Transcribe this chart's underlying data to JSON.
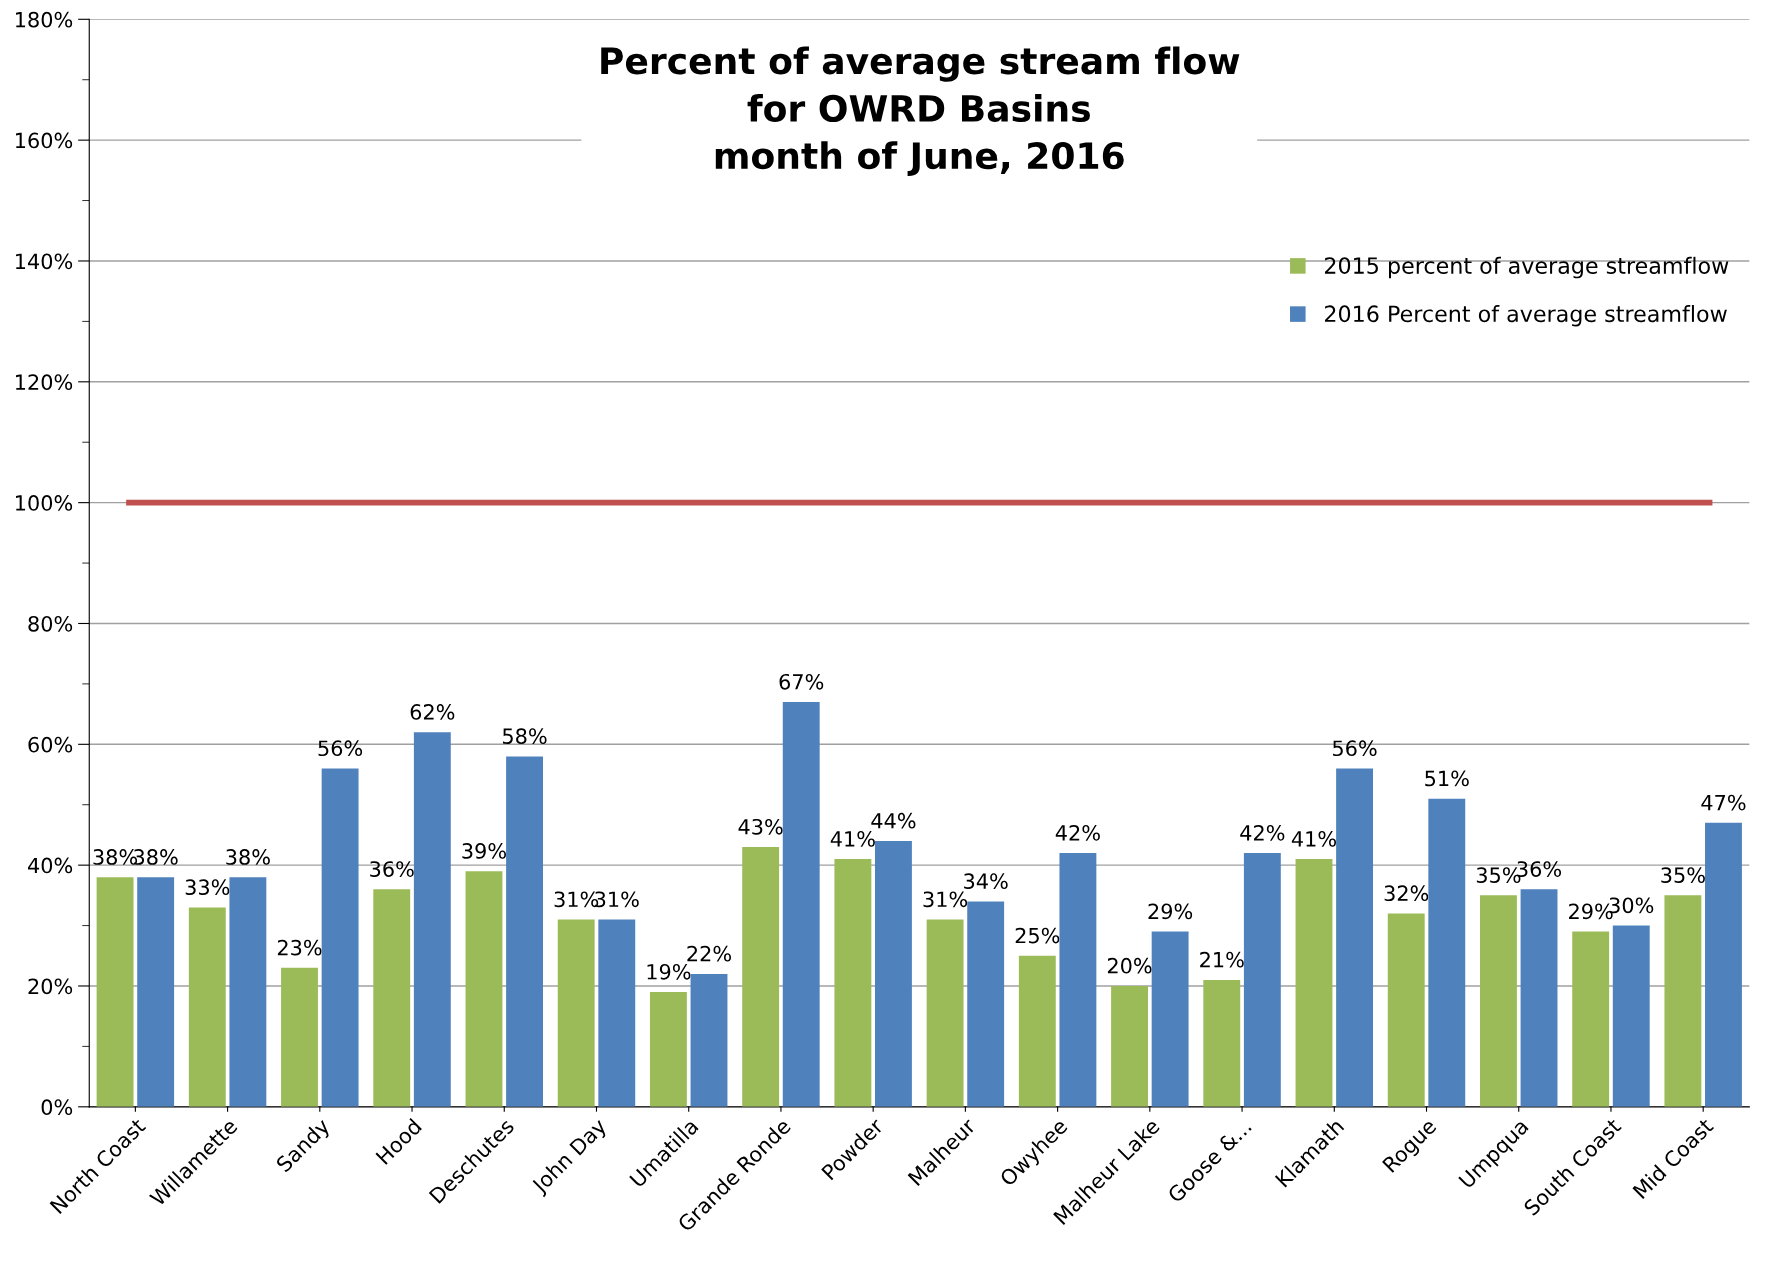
{
  "chart_data": {
    "type": "bar",
    "title": "Percent of average stream flow\nfor OWRD Basins\nmonth of June, 2016",
    "categories": [
      "North Coast",
      "Willamette",
      "Sandy",
      "Hood",
      "Deschutes",
      "John Day",
      "Umatilla",
      "Grande Ronde",
      "Powder",
      "Malheur",
      "Owyhee",
      "Malheur Lake",
      "Goose &...",
      "Klamath",
      "Rogue",
      "Umpqua",
      "South Coast",
      "Mid Coast"
    ],
    "series": [
      {
        "name": "2015 percent of average streamflow",
        "color": "#9bbb59",
        "values": [
          38,
          33,
          23,
          36,
          39,
          31,
          19,
          43,
          41,
          31,
          25,
          20,
          21,
          41,
          32,
          35,
          29,
          35
        ],
        "value_labels": [
          "38%",
          "33%",
          "23%",
          "36%",
          "39%",
          "31%",
          "19%",
          "43%",
          "41%",
          "31%",
          "25%",
          "20%",
          "21%",
          "41%",
          "32%",
          "35%",
          "29%",
          "35%"
        ]
      },
      {
        "name": "2016 Percent of average streamflow",
        "color": "#4f81bd",
        "values": [
          38,
          38,
          56,
          62,
          58,
          31,
          22,
          67,
          44,
          34,
          42,
          29,
          42,
          56,
          51,
          36,
          30,
          47
        ],
        "value_labels": [
          "38%",
          "38%",
          "56%",
          "62%",
          "58%",
          "31%",
          "22%",
          "67%",
          "44%",
          "34%",
          "42%",
          "29%",
          "42%",
          "56%",
          "51%",
          "36%",
          "30%",
          "47%"
        ]
      }
    ],
    "ylim": [
      0,
      180
    ],
    "yticks": [
      {
        "value": 0,
        "label": "0%"
      },
      {
        "value": 10,
        "label": null
      },
      {
        "value": 20,
        "label": "20%"
      },
      {
        "value": 30,
        "label": null
      },
      {
        "value": 40,
        "label": "40%"
      },
      {
        "value": 50,
        "label": null
      },
      {
        "value": 60,
        "label": "60%"
      },
      {
        "value": 70,
        "label": null
      },
      {
        "value": 80,
        "label": "80%"
      },
      {
        "value": 90,
        "label": null
      },
      {
        "value": 100,
        "label": "100%"
      },
      {
        "value": 110,
        "label": null
      },
      {
        "value": 120,
        "label": "120%"
      },
      {
        "value": 130,
        "label": null
      },
      {
        "value": 140,
        "label": "140%"
      },
      {
        "value": 150,
        "label": null
      },
      {
        "value": 160,
        "label": "160%"
      },
      {
        "value": 170,
        "label": null
      },
      {
        "value": 180,
        "label": "180%"
      }
    ],
    "ref_lines": [
      {
        "axis": "y",
        "value": 100,
        "color": "#c0504d"
      }
    ],
    "grid": "y",
    "legend": "top right"
  }
}
